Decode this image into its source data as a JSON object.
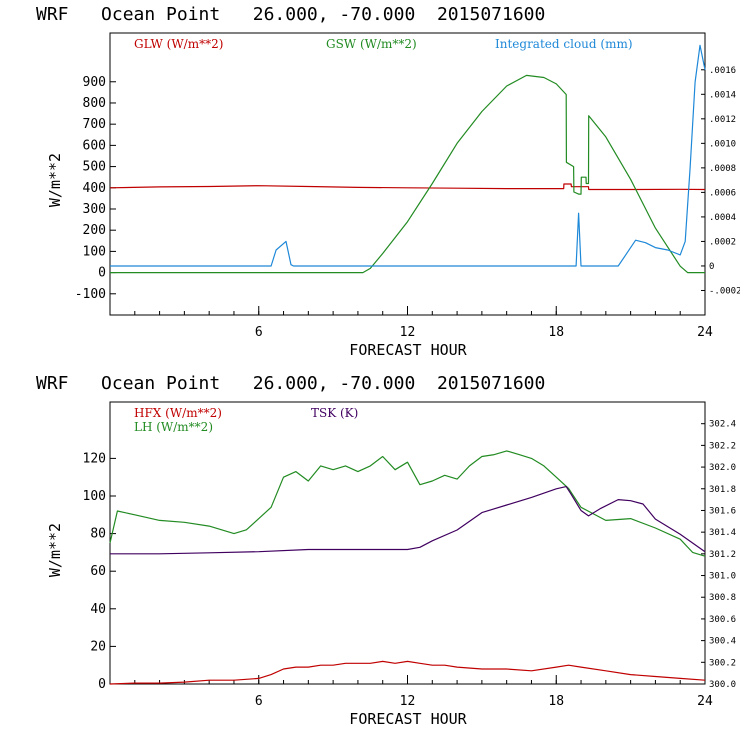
{
  "chart_data": [
    {
      "type": "line",
      "title": "WRF   Ocean Point   26.000, -70.000  2015071600",
      "xlabel": "FORECAST HOUR",
      "ylabel": "W/m**2",
      "xlim": [
        0,
        24
      ],
      "ylim": [
        -200,
        1130
      ],
      "x_ticks": [
        "6",
        "12",
        "18",
        "24"
      ],
      "y_ticks": [
        "-100",
        "0",
        "100",
        "200",
        "300",
        "400",
        "500",
        "600",
        "700",
        "800",
        "900"
      ],
      "right_axis": {
        "label": "Integrated cloud (mm)",
        "range": [
          -0.0004,
          0.0019
        ],
        "ticks": [
          ".0016",
          ".0014",
          ".0012",
          ".0010",
          ".0008",
          ".0006",
          ".0004",
          ".0002",
          "0",
          "-.0002"
        ]
      },
      "series": [
        {
          "name": "GLW (W/m**2)",
          "color": "#c00000",
          "axis": "left",
          "x": [
            0,
            2,
            4,
            6,
            8,
            10,
            12,
            14,
            16,
            18.3,
            18.31,
            18.6,
            18.61,
            19.3,
            19.31,
            21,
            23,
            24
          ],
          "y": [
            400,
            404,
            406,
            410,
            406,
            402,
            400,
            398,
            396,
            396,
            418,
            418,
            405,
            405,
            392,
            392,
            393,
            392
          ]
        },
        {
          "name": "GSW (W/m**2)",
          "color": "#228b22",
          "axis": "left",
          "x": [
            0,
            10.2,
            10.5,
            11,
            12,
            13,
            14,
            15,
            16,
            16.8,
            17.5,
            18,
            18.4,
            18.41,
            18.7,
            18.71,
            18.9,
            19.0,
            19.01,
            19.2,
            19.21,
            19.3,
            19.31,
            20,
            21,
            22,
            23,
            23.3,
            24
          ],
          "y": [
            0,
            0,
            20,
            90,
            240,
            420,
            610,
            760,
            880,
            930,
            920,
            890,
            840,
            520,
            500,
            380,
            370,
            370,
            450,
            450,
            420,
            420,
            740,
            640,
            440,
            210,
            30,
            0,
            0
          ]
        },
        {
          "name": "Integrated cloud (mm)",
          "color": "#1e88d8",
          "axis": "right",
          "x": [
            0,
            6.5,
            6.7,
            7.1,
            7.3,
            7.4,
            18.8,
            18.9,
            19.0,
            19.15,
            20.5,
            20.8,
            21.2,
            21.6,
            22,
            22.5,
            23,
            23.2,
            23.4,
            23.6,
            23.8,
            24
          ],
          "y": [
            0,
            0,
            0.00013,
            0.0002,
            1e-05,
            0,
            0,
            0.00043,
            0,
            0,
            0,
            9e-05,
            0.00021,
            0.00019,
            0.00015,
            0.00013,
            9e-05,
            0.0002,
            0.0008,
            0.0015,
            0.0018,
            0.0016
          ]
        }
      ]
    },
    {
      "type": "line",
      "title": "WRF   Ocean Point   26.000, -70.000  2015071600",
      "xlabel": "FORECAST HOUR",
      "ylabel": "W/m**2",
      "xlim": [
        0,
        24
      ],
      "ylim": [
        0,
        150
      ],
      "x_ticks": [
        "6",
        "12",
        "18",
        "24"
      ],
      "y_ticks": [
        "0",
        "20",
        "40",
        "60",
        "80",
        "100",
        "120"
      ],
      "right_axis": {
        "label": "TSK (K)",
        "range": [
          300.0,
          302.6
        ],
        "ticks": [
          "302.4",
          "302.2",
          "302.0",
          "301.8",
          "301.6",
          "301.4",
          "301.2",
          "301.0",
          "300.8",
          "300.6",
          "300.4",
          "300.2",
          "300.0"
        ]
      },
      "series": [
        {
          "name": "HFX (W/m**2)",
          "color": "#c00000",
          "axis": "left",
          "x": [
            0,
            1,
            2,
            3,
            4,
            5,
            6,
            6.5,
            7,
            7.5,
            8,
            8.5,
            9,
            9.5,
            10,
            10.5,
            11,
            11.5,
            12,
            12.5,
            13,
            13.5,
            14,
            15,
            16,
            17,
            18,
            18.5,
            19,
            20,
            21,
            22,
            23,
            24
          ],
          "y": [
            0,
            0.5,
            0.5,
            1,
            2,
            2,
            3,
            5,
            8,
            9,
            9,
            10,
            10,
            11,
            11,
            11,
            12,
            11,
            12,
            11,
            10,
            10,
            9,
            8,
            8,
            7,
            9,
            10,
            9,
            7,
            5,
            4,
            3,
            2
          ]
        },
        {
          "name": "LH (W/m**2)",
          "color": "#228b22",
          "axis": "left",
          "x": [
            0,
            0.3,
            1,
            2,
            3,
            4,
            5,
            5.5,
            6,
            6.5,
            7,
            7.5,
            8,
            8.5,
            9,
            9.5,
            10,
            10.5,
            11,
            11.5,
            12,
            12.5,
            13,
            13.5,
            14,
            14.5,
            15,
            15.5,
            16,
            16.5,
            17,
            17.5,
            18,
            18.5,
            19,
            20,
            21,
            22,
            23,
            23.5,
            24
          ],
          "y": [
            75,
            92,
            90,
            87,
            86,
            84,
            80,
            82,
            88,
            94,
            110,
            113,
            108,
            116,
            114,
            116,
            113,
            116,
            121,
            114,
            118,
            106,
            108,
            111,
            109,
            116,
            121,
            122,
            124,
            122,
            120,
            116,
            110,
            104,
            94,
            87,
            88,
            83,
            77,
            70,
            68
          ]
        },
        {
          "name": "TSK (K)",
          "color": "#400060",
          "axis": "right",
          "x": [
            0,
            2,
            4,
            6,
            8,
            10,
            11,
            12,
            12.5,
            13,
            14,
            15,
            16,
            17,
            18,
            18.4,
            18.6,
            19,
            19.3,
            19.8,
            20.5,
            21,
            21.5,
            22,
            23,
            24
          ],
          "y": [
            301.2,
            301.2,
            301.21,
            301.22,
            301.24,
            301.24,
            301.24,
            301.24,
            301.26,
            301.32,
            301.42,
            301.58,
            301.65,
            301.72,
            301.8,
            301.82,
            301.75,
            301.6,
            301.55,
            301.62,
            301.7,
            301.69,
            301.66,
            301.52,
            301.38,
            301.22
          ]
        }
      ]
    }
  ]
}
